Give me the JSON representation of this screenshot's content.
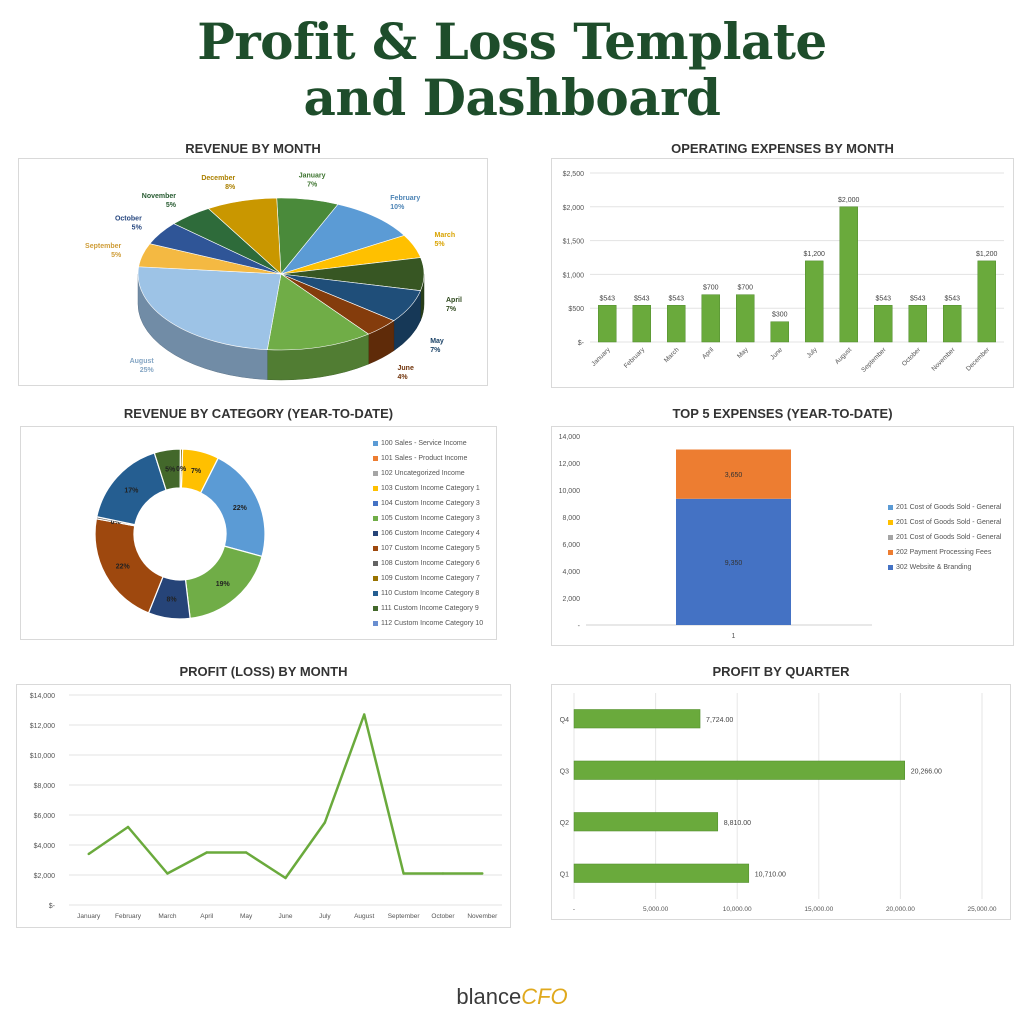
{
  "header": {
    "title_line1": "Profit & Loss Template",
    "title_line2": "and Dashboard"
  },
  "colors": {
    "title": "#1e4d2b",
    "bar_green": "#6aaa3c",
    "pie_palette": [
      "#4a8a3a",
      "#5b9bd5",
      "#ffc000",
      "#375623",
      "#1f4e79",
      "#843c0c",
      "#70ad47",
      "#9dc3e6",
      "#f4b942",
      "#2f5597",
      "#2e6b3a",
      "#c99700"
    ]
  },
  "chart_data": [
    {
      "type": "pie",
      "title": "REVENUE BY MONTH",
      "categories": [
        "January",
        "February",
        "March",
        "April",
        "May",
        "June",
        "July",
        "August",
        "September",
        "October",
        "November",
        "December"
      ],
      "values": [
        7,
        10,
        5,
        7,
        7,
        4,
        12,
        25,
        5,
        5,
        5,
        8
      ],
      "labels": [
        "7%",
        "10%",
        "5%",
        "7%",
        "7%",
        "4%",
        "12%",
        "25%",
        "5%",
        "5%",
        "5%",
        "8%"
      ]
    },
    {
      "type": "bar",
      "title": "OPERATING EXPENSES BY MONTH",
      "categories": [
        "January",
        "February",
        "March",
        "April",
        "May",
        "June",
        "July",
        "August",
        "September",
        "October",
        "November",
        "December"
      ],
      "values": [
        543,
        543,
        543,
        700,
        700,
        300,
        1200,
        2000,
        543,
        543,
        543,
        1200
      ],
      "value_labels": [
        "$543",
        "$543",
        "$543",
        "$700",
        "$700",
        "$300",
        "$1,200",
        "$2,000",
        "$543",
        "$543",
        "$543",
        "$1,200"
      ],
      "ylim": [
        0,
        2500
      ],
      "yticks": [
        "$-",
        "$500",
        "$1,000",
        "$1,500",
        "$2,000",
        "$2,500"
      ],
      "grid": true
    },
    {
      "type": "pie",
      "subtype": "donut",
      "title": "REVENUE BY CATEGORY (YEAR-TO-DATE)",
      "categories": [
        "100 Sales - Service Income",
        "101 Sales - Product Income",
        "102 Uncategorized Income",
        "103 Custom Income Category 1",
        "104 Custom Income Category 3",
        "105 Custom Income Category 3",
        "106 Custom Income Category 4",
        "107 Custom Income Category 5",
        "108 Custom Income Category 6",
        "109 Custom Income Category 7",
        "110 Custom Income Category 8",
        "111 Custom Income Category 9",
        "112 Custom Income Category 10"
      ],
      "legend_colors": [
        "#5b9bd5",
        "#ed7d31",
        "#a5a5a5",
        "#ffc000",
        "#4472c4",
        "#70ad47",
        "#264478",
        "#9e480e",
        "#636363",
        "#997300",
        "#255e91",
        "#43682b",
        "#698ed0"
      ],
      "segments": [
        {
          "label": "7%",
          "value": 7,
          "color": "#ffc000"
        },
        {
          "label": "22%",
          "value": 22,
          "color": "#5b9bd5"
        },
        {
          "label": "19%",
          "value": 19,
          "color": "#70ad47"
        },
        {
          "label": "8%",
          "value": 8,
          "color": "#264478"
        },
        {
          "label": "22%",
          "value": 22,
          "color": "#9e480e"
        },
        {
          "label": "0%",
          "value": 0.4,
          "color": "#636363"
        },
        {
          "label": "17%",
          "value": 17,
          "color": "#255e91"
        },
        {
          "label": "5%",
          "value": 5,
          "color": "#43682b"
        },
        {
          "label": "0%",
          "value": 0.4,
          "color": "#997300"
        }
      ],
      "legend": "right"
    },
    {
      "type": "bar",
      "subtype": "stacked",
      "title": "TOP 5 EXPENSES (YEAR-TO-DATE)",
      "categories": [
        "1"
      ],
      "series": [
        {
          "name": "302 Website & Branding",
          "values": [
            9350
          ],
          "label": "9,350",
          "color": "#4472c4"
        },
        {
          "name": "202 Payment Processing Fees",
          "values": [
            3650
          ],
          "label": "3,650",
          "color": "#ed7d31"
        }
      ],
      "legend_items": [
        {
          "name": "201 Cost of Goods Sold - General",
          "color": "#5b9bd5"
        },
        {
          "name": "201 Cost of Goods Sold - General",
          "color": "#ffc000"
        },
        {
          "name": "201 Cost of Goods Sold - General",
          "color": "#a5a5a5"
        },
        {
          "name": "202 Payment Processing Fees",
          "color": "#ed7d31"
        },
        {
          "name": "302 Website & Branding",
          "color": "#4472c4"
        }
      ],
      "ylim": [
        0,
        14000
      ],
      "yticks": [
        "-",
        "2,000",
        "4,000",
        "6,000",
        "8,000",
        "10,000",
        "12,000",
        "14,000"
      ],
      "legend": "right"
    },
    {
      "type": "line",
      "title": "PROFIT (LOSS) BY MONTH",
      "categories": [
        "January",
        "February",
        "March",
        "April",
        "May",
        "June",
        "July",
        "August",
        "September",
        "October",
        "November"
      ],
      "values": [
        3400,
        5200,
        2100,
        3500,
        3500,
        1800,
        5500,
        12700,
        2100,
        2100,
        2100
      ],
      "ylim": [
        0,
        14000
      ],
      "yticks": [
        "$-",
        "$2,000",
        "$4,000",
        "$6,000",
        "$8,000",
        "$10,000",
        "$12,000",
        "$14,000"
      ],
      "grid": true
    },
    {
      "type": "bar",
      "subtype": "horizontal",
      "title": "PROFIT BY QUARTER",
      "categories": [
        "Q1",
        "Q2",
        "Q3",
        "Q4"
      ],
      "values": [
        10710,
        8810,
        20266,
        7724
      ],
      "value_labels": [
        "10,710.00",
        "8,810.00",
        "20,266.00",
        "7,724.00"
      ],
      "xlim": [
        0,
        25000
      ],
      "xticks": [
        "-",
        "5,000.00",
        "10,000.00",
        "15,000.00",
        "20,000.00",
        "25,000.00"
      ],
      "grid": true
    }
  ],
  "footer": {
    "logo_part1": "b",
    "logo_part2": "lance",
    "logo_part3": "CFO"
  }
}
